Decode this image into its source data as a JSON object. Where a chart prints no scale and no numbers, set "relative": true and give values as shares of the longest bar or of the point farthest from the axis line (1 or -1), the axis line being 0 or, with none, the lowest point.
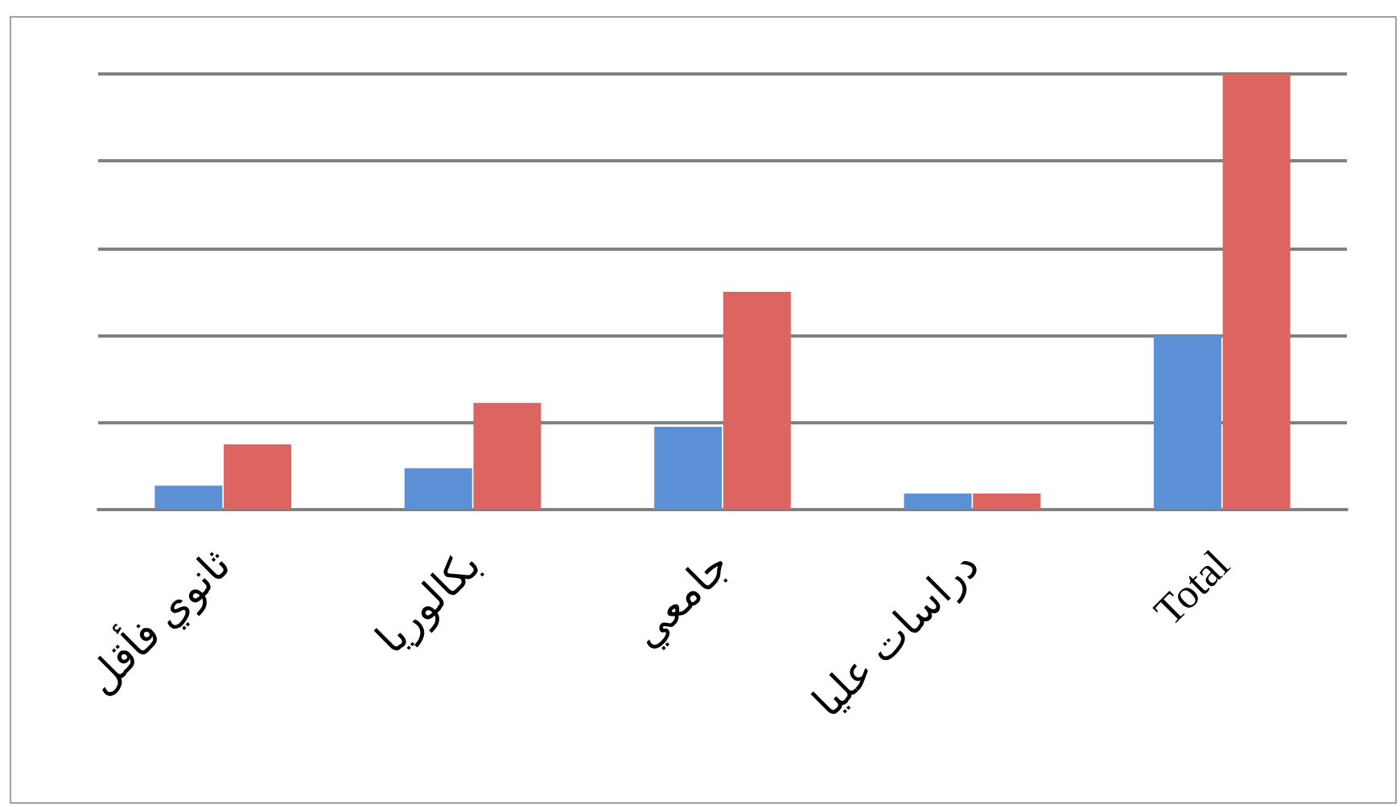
{
  "chart_data": {
    "type": "bar",
    "relative": true,
    "grid": "y",
    "categories": [
      "ثانوي فأقل",
      "بكالوريا",
      "جامعي",
      "دراسات عليا",
      "Total"
    ],
    "series": [
      {
        "color": "#5b8fd6",
        "values": [
          0.055,
          0.095,
          0.19,
          0.037,
          0.4
        ]
      },
      {
        "color": "#dc6562",
        "values": [
          0.15,
          0.245,
          0.5,
          0.037,
          1
        ]
      }
    ]
  }
}
